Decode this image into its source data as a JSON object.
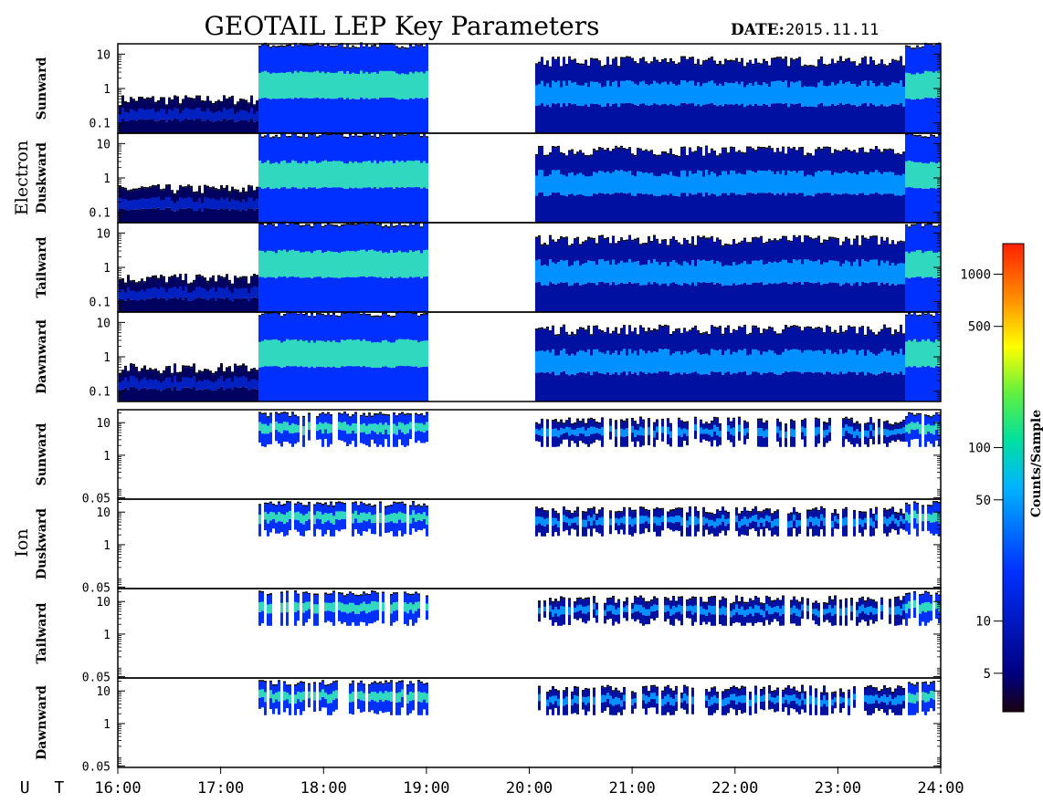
{
  "chart_data": {
    "type": "heatmap",
    "title": "GEOTAIL LEP Key Parameters",
    "date_label": "DATE:",
    "date_value": "2015.11.11",
    "x_axis": {
      "label": "U T",
      "ticks": [
        "16:00",
        "17:00",
        "18:00",
        "19:00",
        "20:00",
        "21:00",
        "22:00",
        "23:00",
        "24:00"
      ],
      "range_hours": [
        16,
        24
      ]
    },
    "groups": [
      {
        "name": "Electron",
        "y_ticks": [
          "10",
          "1",
          "0.1"
        ],
        "y_tick_values": [
          10,
          1,
          0.1
        ],
        "y_range": [
          0.05,
          20
        ],
        "panels": [
          {
            "label": "Sunward"
          },
          {
            "label": "Duskward"
          },
          {
            "label": "Tailward"
          },
          {
            "label": "Dawnward"
          }
        ],
        "data_gaps_hours": [
          [
            19.0,
            20.05
          ]
        ]
      },
      {
        "name": "Ion",
        "y_ticks": [
          "10",
          "1",
          "0.05"
        ],
        "y_tick_values": [
          10,
          1,
          0.05
        ],
        "y_range": [
          0.045,
          25
        ],
        "panels": [
          {
            "label": "Sunward"
          },
          {
            "label": "Duskward"
          },
          {
            "label": "Tailward"
          },
          {
            "label": "Dawnward"
          }
        ],
        "data_gaps_hours": [
          [
            16.0,
            17.35
          ],
          [
            19.0,
            20.05
          ]
        ]
      }
    ],
    "colorbar": {
      "label": "Counts/Sample",
      "scale": "log",
      "range": [
        3,
        1500
      ],
      "ticks": [
        "1000",
        "500",
        "100",
        "50",
        "10",
        "5"
      ],
      "tick_values": [
        1000,
        500,
        100,
        50,
        10,
        5
      ],
      "colormap": [
        "#1a0010",
        "#000080",
        "#0030ff",
        "#00b4ff",
        "#00e0a0",
        "#60f040",
        "#ffff00",
        "#ff9000",
        "#ff2000"
      ]
    },
    "activity_segments_hours": [
      {
        "start": 16.0,
        "end": 17.35,
        "level": "low"
      },
      {
        "start": 17.35,
        "end": 19.0,
        "level": "high"
      },
      {
        "start": 20.05,
        "end": 21.75,
        "level": "medium"
      },
      {
        "start": 21.75,
        "end": 23.65,
        "level": "medium"
      },
      {
        "start": 23.65,
        "end": 24.0,
        "level": "high"
      }
    ]
  }
}
